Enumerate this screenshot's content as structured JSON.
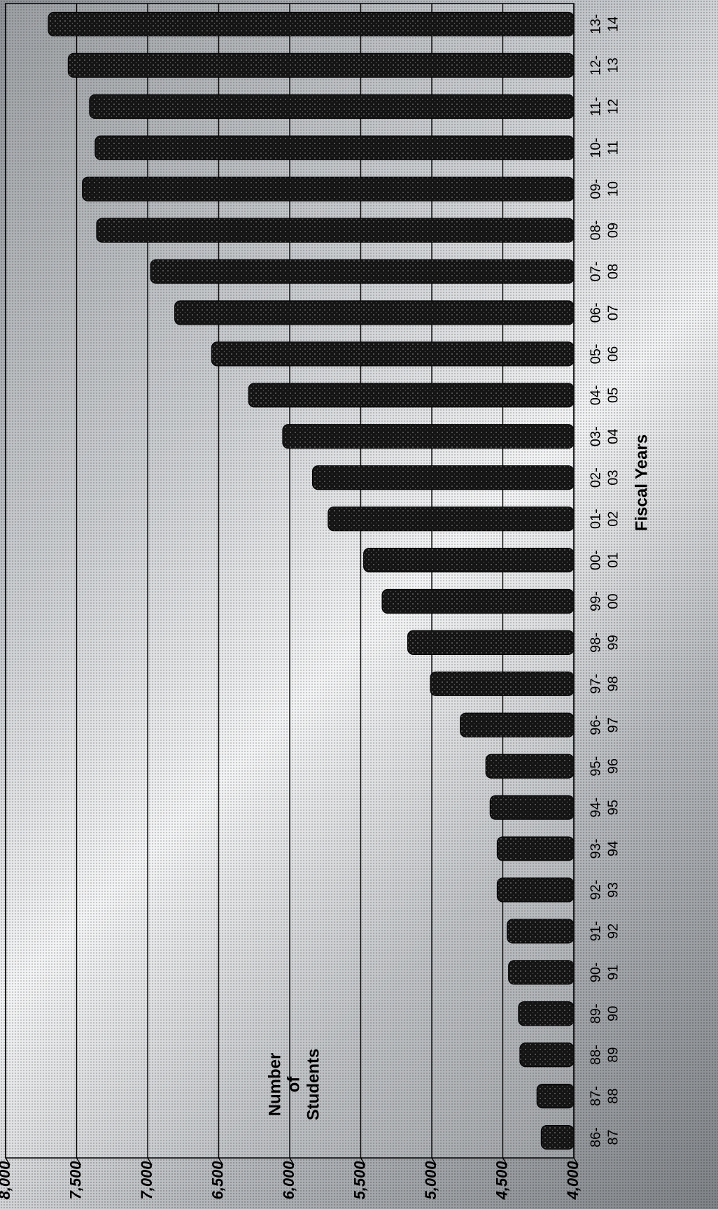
{
  "chart_data": {
    "type": "bar",
    "categories": [
      [
        "86-",
        "87"
      ],
      [
        "87-",
        "88"
      ],
      [
        "88-",
        "89"
      ],
      [
        "89-",
        "90"
      ],
      [
        "90-",
        "91"
      ],
      [
        "91-",
        "92"
      ],
      [
        "92-",
        "93"
      ],
      [
        "93-",
        "94"
      ],
      [
        "94-",
        "95"
      ],
      [
        "95-",
        "96"
      ],
      [
        "96-",
        "97"
      ],
      [
        "97-",
        "98"
      ],
      [
        "98-",
        "99"
      ],
      [
        "99-",
        "00"
      ],
      [
        "00-",
        "01"
      ],
      [
        "01-",
        "02"
      ],
      [
        "02-",
        "03"
      ],
      [
        "03-",
        "04"
      ],
      [
        "04-",
        "05"
      ],
      [
        "05-",
        "06"
      ],
      [
        "06-",
        "07"
      ],
      [
        "07-",
        "08"
      ],
      [
        "08-",
        "09"
      ],
      [
        "09-",
        "10"
      ],
      [
        "10-",
        "11"
      ],
      [
        "11-",
        "12"
      ],
      [
        "12-",
        "13"
      ],
      [
        "13-",
        "14"
      ]
    ],
    "values": [
      4230,
      4260,
      4380,
      4390,
      4460,
      4470,
      4540,
      4540,
      4590,
      4620,
      4800,
      5010,
      5170,
      5350,
      5480,
      5730,
      5840,
      6050,
      6290,
      6550,
      6810,
      6980,
      7360,
      7460,
      7370,
      7410,
      7560,
      7700
    ],
    "xlabel": "Fiscal Years",
    "ylabel": [
      "Number",
      "of",
      "Students"
    ],
    "ylim": [
      4000,
      8000
    ],
    "yticks": [
      "4,000",
      "4,500",
      "5,000",
      "5,500",
      "6,000",
      "6,500",
      "7,000",
      "7,500",
      "8,000"
    ],
    "grid": true,
    "orientation": "rotated-90-clockwise",
    "colors": {
      "bar": "#141414",
      "bar_edge": "#000000",
      "grid": "#000000"
    }
  }
}
